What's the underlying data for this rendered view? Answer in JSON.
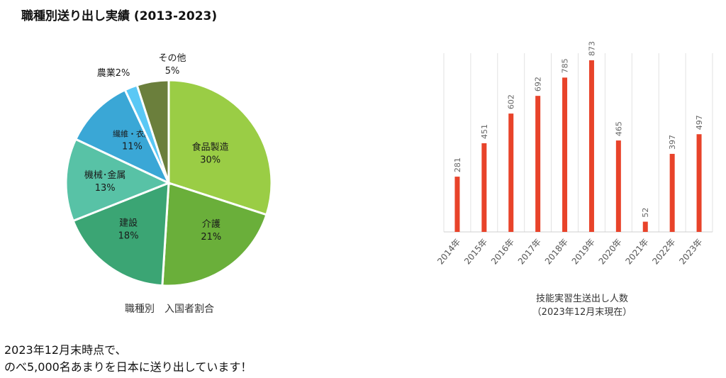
{
  "page_title": "職種別送り出し実績 (2013-2023)",
  "pie_caption": "職種別　入国者割合",
  "bar_caption_line1": "技能実習生送出し人数",
  "bar_caption_line2": "（2023年12月末現在）",
  "footer": {
    "line1": "2023年12月末時点で、",
    "line2": "のべ5,000名あまりを日本に送り出しています！"
  },
  "chart_data": [
    {
      "type": "pie",
      "title": "職種別　入国者割合",
      "slices": [
        {
          "label": "食品製造",
          "value": 30,
          "pct": "30%",
          "color": "#9ACD45"
        },
        {
          "label": "介護",
          "value": 21,
          "pct": "21%",
          "color": "#6AAF3A"
        },
        {
          "label": "建設",
          "value": 18,
          "pct": "18%",
          "color": "#3BA574"
        },
        {
          "label": "機械･金属",
          "value": 13,
          "pct": "13%",
          "color": "#58C2A6"
        },
        {
          "label": "繊維・衣服",
          "value": 11,
          "pct": "11%",
          "color": "#3AA7D6"
        },
        {
          "label": "農業",
          "value": 2,
          "pct": "2%",
          "color": "#5AC8F5"
        },
        {
          "label": "その他",
          "value": 5,
          "pct": "5%",
          "color": "#6B7F3C"
        }
      ]
    },
    {
      "type": "bar",
      "title": "技能実習生送出し人数",
      "subtitle": "（2023年12月末現在）",
      "categories": [
        "2014年",
        "2015年",
        "2016年",
        "2017年",
        "2018年",
        "2019年",
        "2020年",
        "2021年",
        "2022年",
        "2023年"
      ],
      "values": [
        281,
        451,
        602,
        692,
        785,
        873,
        465,
        52,
        397,
        497
      ],
      "ylim": [
        0,
        873
      ],
      "bar_color": "#E8432A",
      "grid": true
    }
  ]
}
